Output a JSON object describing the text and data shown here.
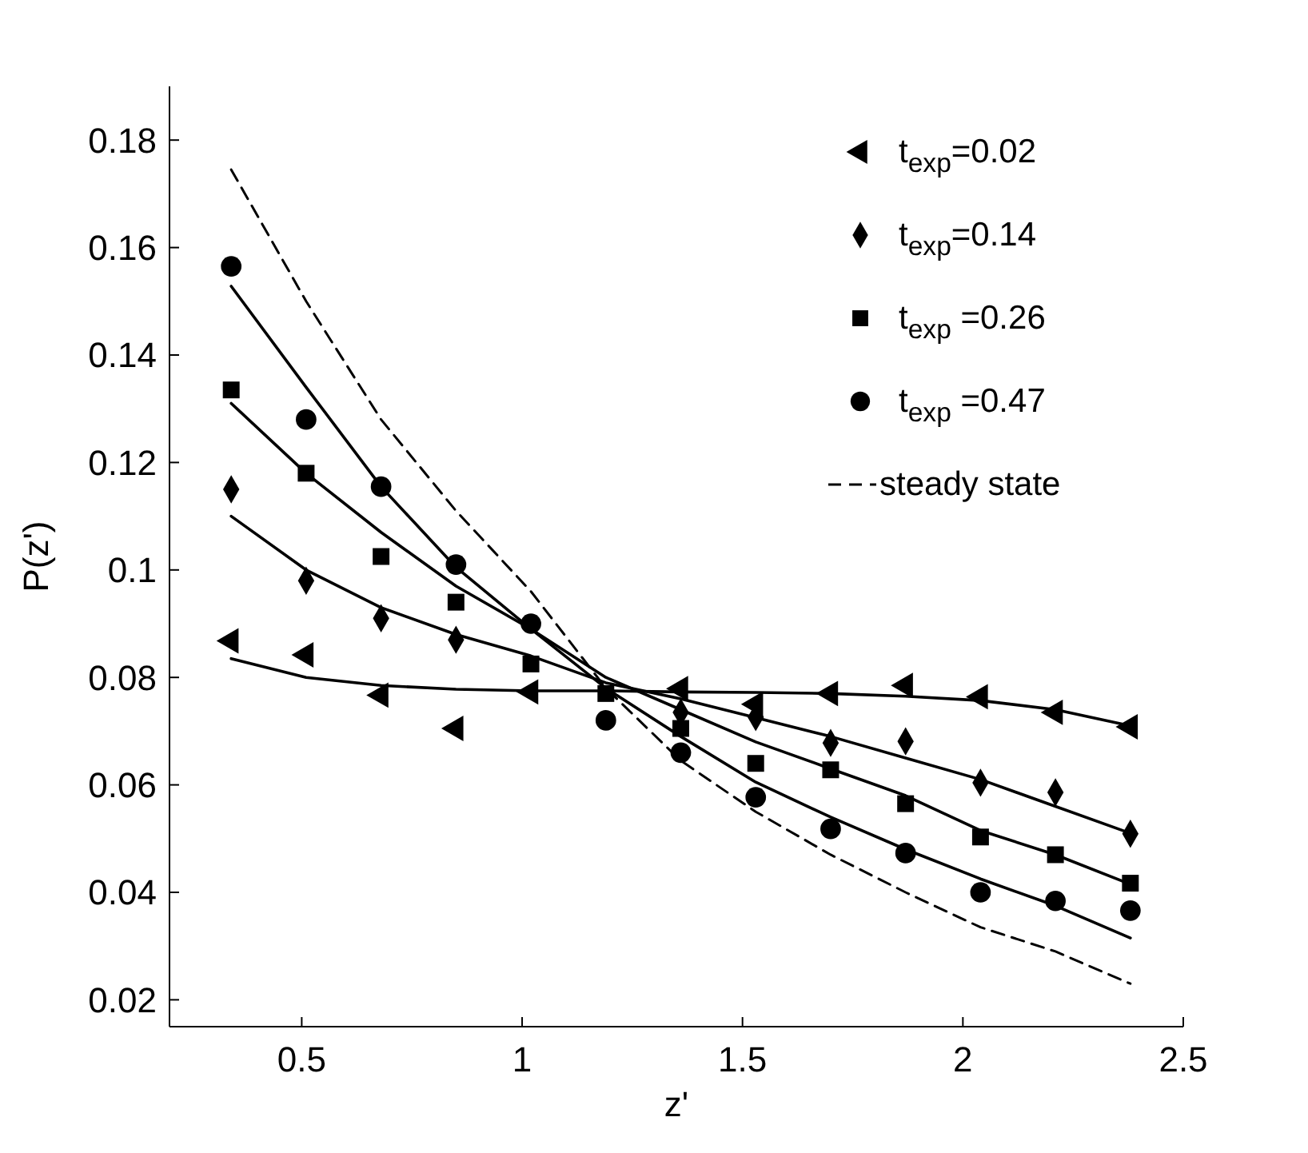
{
  "chart_data": {
    "type": "scatter",
    "xlabel": "z'",
    "ylabel": "P(z')",
    "x": [
      0.34,
      0.51,
      0.68,
      0.85,
      1.02,
      1.19,
      1.36,
      1.53,
      1.7,
      1.87,
      2.04,
      2.21,
      2.38
    ],
    "xlim": [
      0.2,
      2.5
    ],
    "ylim": [
      0.015,
      0.19
    ],
    "xticks": [
      0.5,
      1,
      1.5,
      2,
      2.5
    ],
    "yticks": [
      0.02,
      0.04,
      0.06,
      0.08,
      0.1,
      0.12,
      0.14,
      0.16,
      0.18
    ],
    "grid": false,
    "legend": "top right",
    "series": [
      {
        "name": "t$_{exp}$=0.02",
        "color": "#000000",
        "marker": "triangle",
        "values": [
          0.0868,
          0.0842,
          0.0767,
          0.0705,
          0.0773,
          null,
          0.0779,
          0.075,
          0.077,
          0.0785,
          0.0764,
          0.0735,
          0.0708
        ]
      },
      {
        "name": "t$_{exp}$=0.14",
        "color": "#000000",
        "marker": "diamond",
        "values": [
          0.115,
          0.098,
          0.091,
          0.087,
          null,
          null,
          0.0735,
          0.0726,
          0.0678,
          0.0681,
          0.0604,
          0.0586,
          0.0509
        ]
      },
      {
        "name": "t$_{exp}$ =0.26",
        "color": "#000000",
        "marker": "square",
        "values": [
          0.1335,
          0.118,
          0.1025,
          0.094,
          0.0825,
          0.077,
          0.0705,
          0.064,
          0.0628,
          0.0565,
          0.0503,
          0.047,
          0.0417
        ]
      },
      {
        "name": "t$_{exp}$ =0.47",
        "color": "#000000",
        "marker": "circle",
        "values": [
          0.1565,
          0.128,
          0.1155,
          0.101,
          0.09,
          0.072,
          0.066,
          0.0577,
          0.0518,
          0.0473,
          0.04,
          0.0384,
          0.0366
        ]
      },
      {
        "type": "line",
        "color": "#000000",
        "marker": "none",
        "line_style": "solid",
        "values": [
          0.0835,
          0.08,
          0.0785,
          0.0778,
          0.0775,
          0.0775,
          0.0773,
          0.0772,
          0.077,
          0.0765,
          0.0757,
          0.074,
          0.071
        ]
      },
      {
        "type": "line",
        "color": "#000000",
        "marker": "none",
        "line_style": "solid",
        "values": [
          0.11,
          0.1,
          0.093,
          0.088,
          0.084,
          0.079,
          0.076,
          0.0725,
          0.069,
          0.065,
          0.061,
          0.056,
          0.051
        ]
      },
      {
        "type": "line",
        "color": "#000000",
        "marker": "none",
        "line_style": "solid",
        "values": [
          0.131,
          0.118,
          0.107,
          0.097,
          0.089,
          0.08,
          0.074,
          0.068,
          0.063,
          0.058,
          0.0515,
          0.047,
          0.0415
        ]
      },
      {
        "type": "line",
        "color": "#000000",
        "marker": "none",
        "line_style": "solid",
        "values": [
          0.1528,
          0.134,
          0.1155,
          0.1005,
          0.089,
          0.078,
          0.069,
          0.0605,
          0.054,
          0.048,
          0.0425,
          0.0375,
          0.0315
        ]
      },
      {
        "name": "steady state",
        "type": "line",
        "color": "#000000",
        "marker": "none",
        "line_style": "dashed",
        "values": [
          0.1745,
          0.15,
          0.128,
          0.111,
          0.096,
          0.078,
          0.0645,
          0.055,
          0.047,
          0.04,
          0.0335,
          0.029,
          0.023
        ]
      }
    ]
  }
}
